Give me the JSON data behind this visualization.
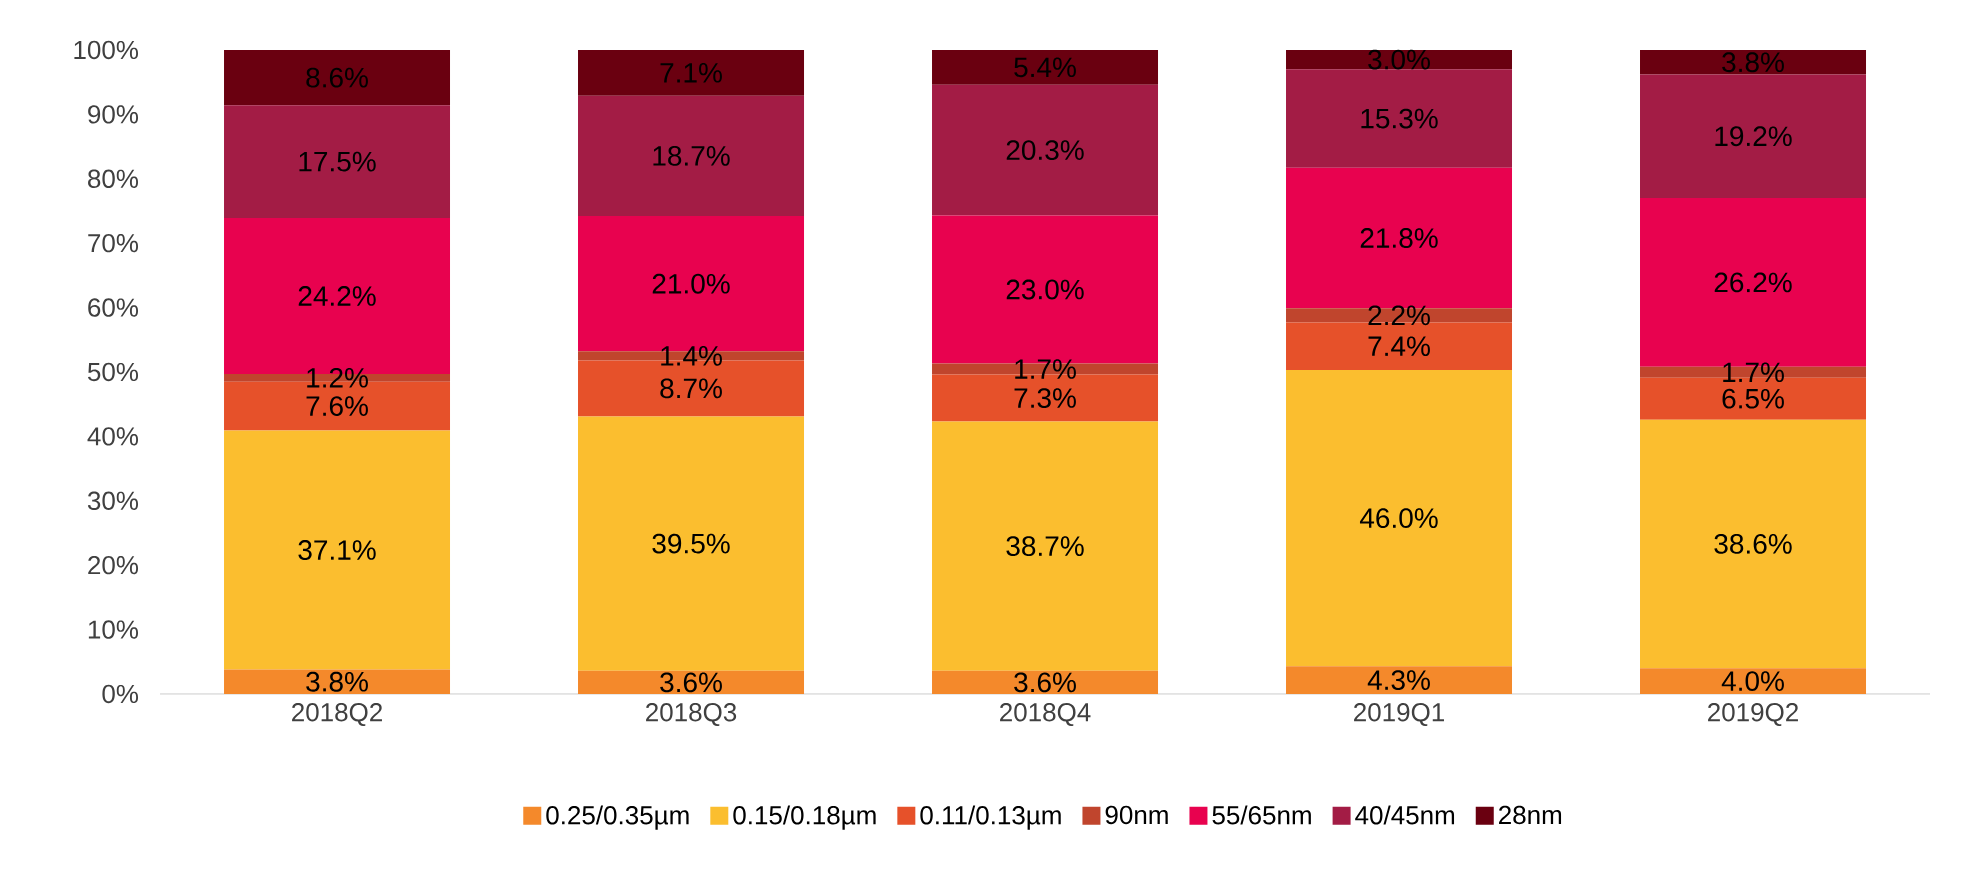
{
  "chart_data": {
    "type": "bar",
    "stacked": true,
    "categories": [
      "2018Q2",
      "2018Q3",
      "2018Q4",
      "2019Q1",
      "2019Q2"
    ],
    "ylim": [
      0,
      100
    ],
    "yticks": [
      {
        "value": 0,
        "label": "0%"
      },
      {
        "value": 10,
        "label": "10%"
      },
      {
        "value": 20,
        "label": "20%"
      },
      {
        "value": 30,
        "label": "30%"
      },
      {
        "value": 40,
        "label": "40%"
      },
      {
        "value": 50,
        "label": "50%"
      },
      {
        "value": 60,
        "label": "60%"
      },
      {
        "value": 70,
        "label": "70%"
      },
      {
        "value": 80,
        "label": "80%"
      },
      {
        "value": 90,
        "label": "90%"
      },
      {
        "value": 100,
        "label": "100%"
      }
    ],
    "legend": "bottom",
    "series": [
      {
        "name": "0.25/0.35µm",
        "color": "#f4892b",
        "values": [
          3.8,
          3.6,
          3.6,
          4.3,
          4.0
        ],
        "value_labels": [
          "3.8%",
          "3.6%",
          "3.6%",
          "4.3%",
          "4.0%"
        ]
      },
      {
        "name": "0.15/0.18µm",
        "color": "#fbbe2f",
        "values": [
          37.1,
          39.5,
          38.7,
          46.0,
          38.6
        ],
        "value_labels": [
          "37.1%",
          "39.5%",
          "38.7%",
          "46.0%",
          "38.6%"
        ]
      },
      {
        "name": "0.11/0.13µm",
        "color": "#e6512a",
        "values": [
          7.6,
          8.7,
          7.3,
          7.4,
          6.5
        ],
        "value_labels": [
          "7.6%",
          "8.7%",
          "7.3%",
          "7.4%",
          "6.5%"
        ]
      },
      {
        "name": "90nm",
        "color": "#c0452d",
        "values": [
          1.2,
          1.4,
          1.7,
          2.2,
          1.7
        ],
        "value_labels": [
          "1.2%",
          "1.4%",
          "1.7%",
          "2.2%",
          "1.7%"
        ]
      },
      {
        "name": "55/65nm",
        "color": "#e8024f",
        "values": [
          24.2,
          21.0,
          23.0,
          21.8,
          26.2
        ],
        "value_labels": [
          "24.2%",
          "21.0%",
          "23.0%",
          "21.8%",
          "26.2%"
        ]
      },
      {
        "name": "40/45nm",
        "color": "#a31c45",
        "values": [
          17.5,
          18.7,
          20.3,
          15.3,
          19.2
        ],
        "value_labels": [
          "17.5%",
          "18.7%",
          "20.3%",
          "15.3%",
          "19.2%"
        ]
      },
      {
        "name": "28nm",
        "color": "#6a0010",
        "values": [
          8.6,
          7.1,
          5.4,
          3.0,
          3.8
        ],
        "value_labels": [
          "8.6%",
          "7.1%",
          "5.4%",
          "3.0%",
          "3.8%"
        ]
      }
    ]
  }
}
